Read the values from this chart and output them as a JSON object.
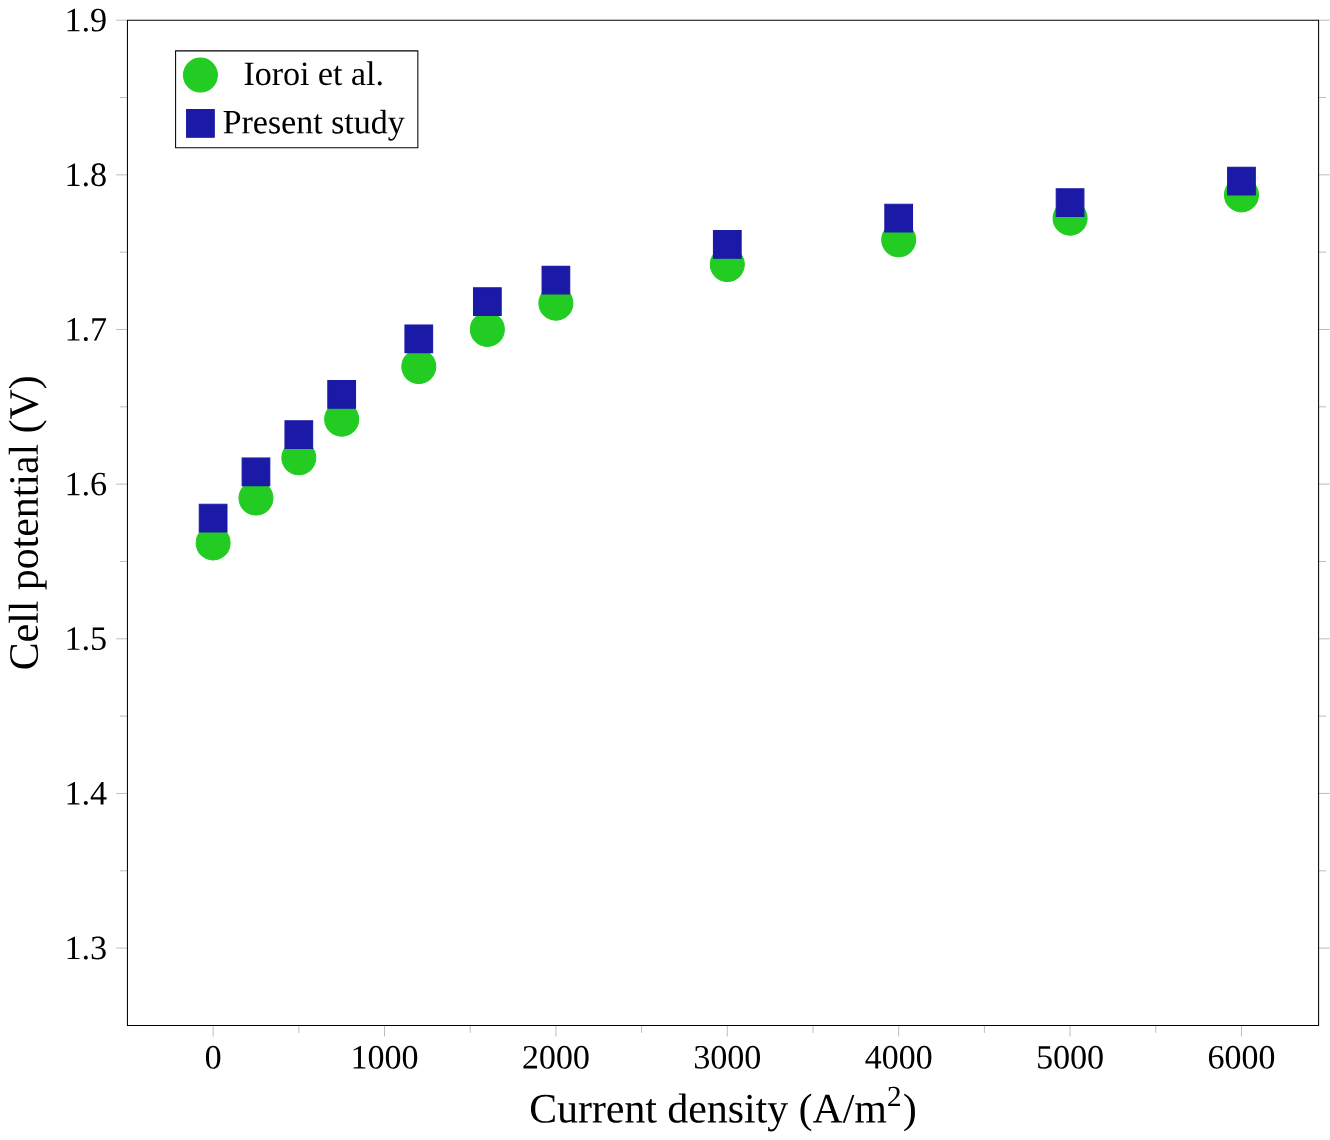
{
  "chart_data": {
    "type": "scatter",
    "xlabel": "Current density (A/m$^{2}$)",
    "ylabel": "Cell potential (V)",
    "xlim": [
      -500,
      6450
    ],
    "ylim": [
      1.25,
      1.9
    ],
    "xticks": [
      0,
      1000,
      2000,
      3000,
      4000,
      5000,
      6000
    ],
    "yticks": [
      1.3,
      1.4,
      1.5,
      1.6,
      1.7,
      1.8,
      1.9
    ],
    "legend": "top left",
    "grid": false,
    "series": [
      {
        "name": "Ioroi et al.",
        "color": "#22cc22",
        "marker": "circle",
        "x": [
          0,
          250,
          500,
          750,
          1200,
          1600,
          2000,
          3000,
          4000,
          5000,
          6000
        ],
        "values": [
          1.562,
          1.591,
          1.617,
          1.642,
          1.676,
          1.7,
          1.717,
          1.742,
          1.758,
          1.772,
          1.787
        ]
      },
      {
        "name": "Present study",
        "color": "#1a1aa6",
        "marker": "square",
        "x": [
          0,
          250,
          500,
          750,
          1200,
          1600,
          2000,
          3000,
          4000,
          5000,
          6000
        ],
        "values": [
          1.578,
          1.608,
          1.632,
          1.658,
          1.694,
          1.718,
          1.732,
          1.755,
          1.772,
          1.782,
          1.796
        ]
      }
    ]
  }
}
